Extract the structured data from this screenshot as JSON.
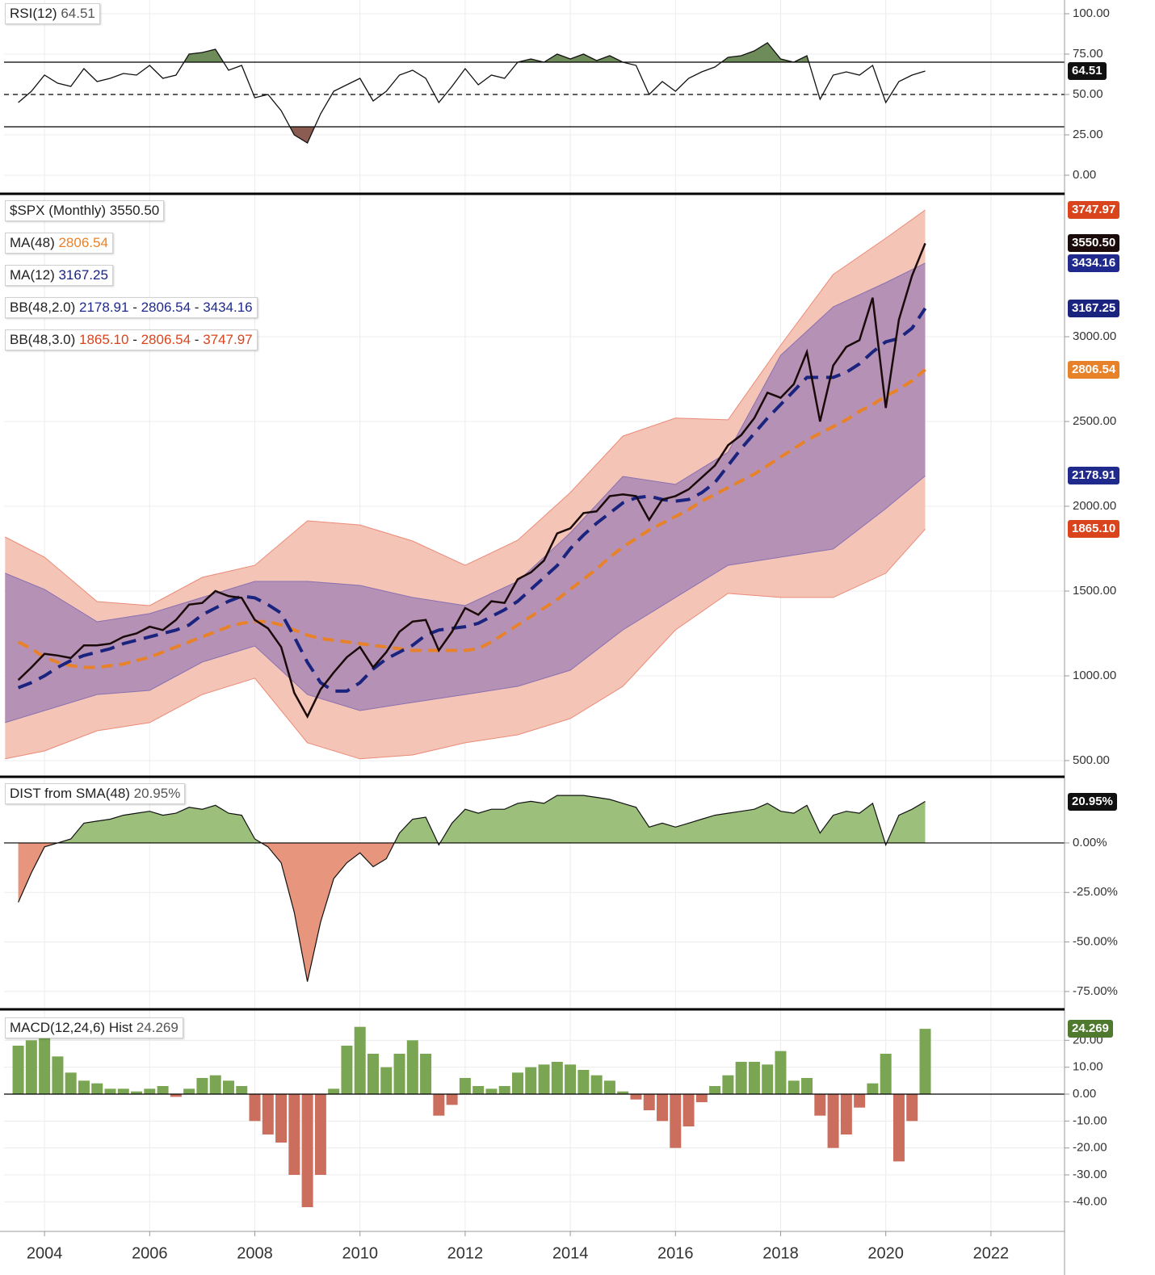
{
  "chart_data": [
    {
      "type": "line",
      "x": [
        2003.5,
        2003.75,
        2004,
        2004.25,
        2004.5,
        2004.75,
        2005,
        2005.25,
        2005.5,
        2005.75,
        2006,
        2006.25,
        2006.5,
        2006.75,
        2007,
        2007.25,
        2007.5,
        2007.75,
        2008,
        2008.25,
        2008.5,
        2008.75,
        2009,
        2009.25,
        2009.5,
        2009.75,
        2010,
        2010.25,
        2010.5,
        2010.75,
        2011,
        2011.25,
        2011.5,
        2011.75,
        2012,
        2012.25,
        2012.5,
        2012.75,
        2013,
        2013.25,
        2013.5,
        2013.75,
        2014,
        2014.25,
        2014.5,
        2014.75,
        2015,
        2015.25,
        2015.5,
        2015.75,
        2016,
        2016.25,
        2016.5,
        2016.75,
        2017,
        2017.25,
        2017.5,
        2017.75,
        2018,
        2018.25,
        2018.5,
        2018.75,
        2019,
        2019.25,
        2019.5,
        2019.75,
        2020,
        2020.25,
        2020.5,
        2020.75
      ],
      "series": [
        {
          "name": "RSI(12)",
          "color": "#111111",
          "values": [
            45,
            52,
            62,
            57,
            55,
            66,
            58,
            60,
            63,
            62,
            68,
            60,
            62,
            75,
            76,
            78,
            65,
            68,
            48,
            50,
            40,
            25,
            20,
            38,
            52,
            56,
            60,
            46,
            52,
            62,
            65,
            60,
            45,
            55,
            66,
            56,
            62,
            60,
            70,
            72,
            70,
            75,
            72,
            75,
            71,
            74,
            70,
            68,
            50,
            58,
            52,
            60,
            64,
            67,
            73,
            74,
            77,
            82,
            72,
            70,
            74,
            47,
            62,
            64,
            62,
            68,
            45,
            58,
            62,
            64.51
          ]
        }
      ],
      "overbought": 70,
      "midline": 50,
      "oversold": 30,
      "overbought_fill": "#6e8b5a",
      "oversold_fill": "#8b5c52",
      "ylim": [
        -10,
        108.5
      ],
      "yticks": [
        {
          "value": 100,
          "label": "100.00"
        },
        {
          "value": 75,
          "label": "75.00"
        },
        {
          "value": 50,
          "label": "50.00"
        },
        {
          "value": 25,
          "label": "25.00"
        },
        {
          "value": 0,
          "label": "0.00"
        }
      ],
      "grid": true
    },
    {
      "type": "line",
      "x": [
        2003.5,
        2003.75,
        2004,
        2004.25,
        2004.5,
        2004.75,
        2005,
        2005.25,
        2005.5,
        2005.75,
        2006,
        2006.25,
        2006.5,
        2006.75,
        2007,
        2007.25,
        2007.5,
        2007.75,
        2008,
        2008.25,
        2008.5,
        2008.75,
        2009,
        2009.25,
        2009.5,
        2009.75,
        2010,
        2010.25,
        2010.5,
        2010.75,
        2011,
        2011.25,
        2011.5,
        2011.75,
        2012,
        2012.25,
        2012.5,
        2012.75,
        2013,
        2013.25,
        2013.5,
        2013.75,
        2014,
        2014.25,
        2014.5,
        2014.75,
        2015,
        2015.25,
        2015.5,
        2015.75,
        2016,
        2016.25,
        2016.5,
        2016.75,
        2017,
        2017.25,
        2017.5,
        2017.75,
        2018,
        2018.25,
        2018.5,
        2018.75,
        2019,
        2019.25,
        2019.5,
        2019.75,
        2020,
        2020.25,
        2020.5,
        2020.75
      ],
      "series": [
        {
          "name": "$SPX (Monthly)",
          "color": "#1a0a0a",
          "last_label": "3550.50",
          "values": [
            975,
            1050,
            1130,
            1120,
            1105,
            1180,
            1180,
            1190,
            1230,
            1250,
            1290,
            1270,
            1330,
            1420,
            1430,
            1500,
            1470,
            1460,
            1330,
            1280,
            1170,
            900,
            760,
            920,
            1020,
            1110,
            1170,
            1050,
            1140,
            1260,
            1320,
            1330,
            1150,
            1260,
            1400,
            1360,
            1440,
            1430,
            1570,
            1610,
            1680,
            1840,
            1870,
            1960,
            1970,
            2060,
            2070,
            2060,
            1920,
            2040,
            2060,
            2100,
            2170,
            2240,
            2360,
            2420,
            2520,
            2670,
            2640,
            2720,
            2910,
            2500,
            2830,
            2940,
            2980,
            3230,
            2580,
            3100,
            3360,
            3550.5
          ]
        },
        {
          "name": "MA(48)",
          "color": "#e8822a",
          "values": [
            1200,
            1160,
            1110,
            1080,
            1060,
            1050,
            1050,
            1060,
            1070,
            1090,
            1110,
            1140,
            1170,
            1200,
            1230,
            1260,
            1290,
            1310,
            1320,
            1320,
            1300,
            1270,
            1240,
            1220,
            1210,
            1200,
            1190,
            1180,
            1170,
            1160,
            1150,
            1150,
            1150,
            1150,
            1150,
            1160,
            1200,
            1250,
            1300,
            1350,
            1400,
            1450,
            1510,
            1570,
            1630,
            1700,
            1760,
            1810,
            1860,
            1900,
            1940,
            1980,
            2030,
            2070,
            2110,
            2150,
            2190,
            2240,
            2290,
            2340,
            2390,
            2430,
            2470,
            2510,
            2560,
            2600,
            2650,
            2690,
            2740,
            2806.54
          ]
        },
        {
          "name": "MA(12)",
          "color": "#1a237e",
          "values": [
            930,
            960,
            1000,
            1050,
            1090,
            1120,
            1140,
            1160,
            1190,
            1210,
            1230,
            1250,
            1270,
            1300,
            1360,
            1400,
            1440,
            1470,
            1460,
            1420,
            1370,
            1230,
            1080,
            960,
            910,
            910,
            960,
            1040,
            1100,
            1140,
            1180,
            1240,
            1270,
            1280,
            1290,
            1310,
            1350,
            1390,
            1440,
            1510,
            1580,
            1650,
            1750,
            1830,
            1900,
            1960,
            2020,
            2050,
            2060,
            2040,
            2030,
            2040,
            2080,
            2140,
            2240,
            2340,
            2430,
            2520,
            2600,
            2680,
            2760,
            2760,
            2760,
            2790,
            2840,
            2910,
            2970,
            2990,
            3050,
            3167.25
          ]
        }
      ],
      "bands": [
        {
          "name": "BB(48,3.0)",
          "color": "#d9441c",
          "fill": "#f4c4b6",
          "stroke": "#ec8a78",
          "lower_last_label": "1865.10",
          "x": [
            2003.25,
            2004,
            2005,
            2006,
            2007,
            2008,
            2009,
            2010,
            2011,
            2012,
            2013,
            2014,
            2015,
            2016,
            2017,
            2018,
            2019,
            2020,
            2020.75
          ],
          "upper": [
            1819,
            1700,
            1438,
            1414,
            1581,
            1652,
            1914,
            1890,
            1795,
            1652,
            1800,
            2081,
            2414,
            2520,
            2510,
            2950,
            3367,
            3581,
            3747.97
          ],
          "lower": [
            510,
            557,
            676,
            724,
            890,
            986,
            605,
            510,
            533,
            605,
            652,
            748,
            938,
            1271,
            1486,
            1462,
            1462,
            1605,
            1865.1
          ]
        },
        {
          "name": "BB(48,2.0)",
          "color": "#1f2a8c",
          "fill": "#b592b5",
          "stroke": "#8a70b0",
          "x": [
            2003.25,
            2004,
            2005,
            2006,
            2007,
            2008,
            2009,
            2010,
            2011,
            2012,
            2013,
            2014,
            2015,
            2016,
            2017,
            2018,
            2019,
            2020,
            2020.75
          ],
          "upper": [
            1605,
            1510,
            1319,
            1367,
            1462,
            1557,
            1557,
            1533,
            1462,
            1414,
            1557,
            1843,
            2176,
            2129,
            2319,
            2890,
            3176,
            3319,
            3434.16
          ],
          "lower": [
            724,
            795,
            890,
            914,
            1081,
            1176,
            890,
            795,
            843,
            890,
            938,
            1033,
            1271,
            1462,
            1652,
            1700,
            1748,
            1986,
            2178.91
          ]
        }
      ],
      "legend_separator": "-",
      "ylim": [
        414,
        3843
      ],
      "yticks": [
        {
          "value": 3000,
          "label": "3000.00"
        },
        {
          "value": 2500,
          "label": "2500.00"
        },
        {
          "value": 2000,
          "label": "2000.00"
        },
        {
          "value": 1500,
          "label": "1500.00"
        },
        {
          "value": 1000,
          "label": "1000.00"
        },
        {
          "value": 500,
          "label": "500.00"
        }
      ],
      "grid": true
    },
    {
      "type": "area",
      "x": [
        2003.5,
        2003.75,
        2004,
        2004.25,
        2004.5,
        2004.75,
        2005,
        2005.25,
        2005.5,
        2005.75,
        2006,
        2006.25,
        2006.5,
        2006.75,
        2007,
        2007.25,
        2007.5,
        2007.75,
        2008,
        2008.25,
        2008.5,
        2008.75,
        2009,
        2009.25,
        2009.5,
        2009.75,
        2010,
        2010.25,
        2010.5,
        2010.75,
        2011,
        2011.25,
        2011.5,
        2011.75,
        2012,
        2012.25,
        2012.5,
        2012.75,
        2013,
        2013.25,
        2013.5,
        2013.75,
        2014,
        2014.25,
        2014.5,
        2014.75,
        2015,
        2015.25,
        2015.5,
        2015.75,
        2016,
        2016.25,
        2016.5,
        2016.75,
        2017,
        2017.25,
        2017.5,
        2017.75,
        2018,
        2018.25,
        2018.5,
        2018.75,
        2019,
        2019.25,
        2019.5,
        2019.75,
        2020,
        2020.25,
        2020.5,
        2020.75
      ],
      "series": [
        {
          "name": "DIST from SMA(48)",
          "color": "#111111",
          "last_label": "20.95%",
          "values": [
            -30,
            -15,
            -2,
            0,
            2,
            10,
            11,
            12,
            14,
            15,
            16,
            14,
            15,
            18,
            17,
            19,
            15,
            14,
            2,
            -2,
            -10,
            -35,
            -70,
            -40,
            -18,
            -10,
            -5,
            -12,
            -8,
            5,
            12,
            13,
            -1,
            10,
            17,
            15,
            17,
            17,
            20,
            21,
            20,
            24,
            24,
            24,
            23,
            22,
            20,
            18,
            8,
            10,
            8,
            10,
            12,
            14,
            15,
            16,
            17,
            20,
            16,
            15,
            19,
            5,
            14,
            16,
            15,
            20,
            -1,
            14,
            17,
            20.95
          ]
        }
      ],
      "positive_color": "#9cbf7c",
      "negative_color": "#e8957d",
      "ylim": [
        -83.2,
        33.4
      ],
      "yticks": [
        {
          "value": 0,
          "label": "0.00%"
        },
        {
          "value": -25,
          "label": "-25.00%"
        },
        {
          "value": -50,
          "label": "-50.00%"
        },
        {
          "value": -75,
          "label": "-75.00%"
        }
      ],
      "grid": true
    },
    {
      "type": "bar",
      "x": [
        2003.5,
        2003.75,
        2004,
        2004.25,
        2004.5,
        2004.75,
        2005,
        2005.25,
        2005.5,
        2005.75,
        2006,
        2006.25,
        2006.5,
        2006.75,
        2007,
        2007.25,
        2007.5,
        2007.75,
        2008,
        2008.25,
        2008.5,
        2008.75,
        2009,
        2009.25,
        2009.5,
        2009.75,
        2010,
        2010.25,
        2010.5,
        2010.75,
        2011,
        2011.25,
        2011.5,
        2011.75,
        2012,
        2012.25,
        2012.5,
        2012.75,
        2013,
        2013.25,
        2013.5,
        2013.75,
        2014,
        2014.25,
        2014.5,
        2014.75,
        2015,
        2015.25,
        2015.5,
        2015.75,
        2016,
        2016.25,
        2016.5,
        2016.75,
        2017,
        2017.25,
        2017.5,
        2017.75,
        2018,
        2018.25,
        2018.5,
        2018.75,
        2019,
        2019.25,
        2019.5,
        2019.75,
        2020,
        2020.25,
        2020.5,
        2020.75
      ],
      "series": [
        {
          "name": "MACD(12,24,6) Hist",
          "color": "#4f7a2e",
          "values": [
            18,
            20,
            21,
            14,
            8,
            5,
            4,
            2,
            2,
            1,
            2,
            3,
            -1,
            2,
            6,
            7,
            5,
            3,
            -10,
            -15,
            -18,
            -30,
            -42,
            -30,
            2,
            18,
            25,
            15,
            10,
            15,
            20,
            15,
            -8,
            -4,
            6,
            3,
            2,
            3,
            8,
            10,
            11,
            12,
            11,
            9,
            7,
            5,
            1,
            -2,
            -6,
            -10,
            -20,
            -12,
            -3,
            3,
            7,
            12,
            12,
            11,
            16,
            5,
            6,
            -8,
            -20,
            -15,
            -5,
            4,
            15,
            -25,
            -10,
            24.269
          ]
        }
      ],
      "positive_color": "#7aa653",
      "negative_color": "#cc6e5e",
      "ylim": [
        -51,
        31.5
      ],
      "yticks": [
        {
          "value": 20,
          "label": "20.00"
        },
        {
          "value": 10,
          "label": "10.00"
        },
        {
          "value": 0,
          "label": "0.00"
        },
        {
          "value": -10,
          "label": "-10.00"
        },
        {
          "value": -20,
          "label": "-20.00"
        },
        {
          "value": -30,
          "label": "-30.00"
        },
        {
          "value": -40,
          "label": "-40.00"
        }
      ],
      "xlim": [
        2003.23,
        2023.4
      ],
      "xticks": [
        2004,
        2006,
        2008,
        2010,
        2012,
        2014,
        2016,
        2018,
        2020,
        2022
      ],
      "grid": true
    }
  ]
}
